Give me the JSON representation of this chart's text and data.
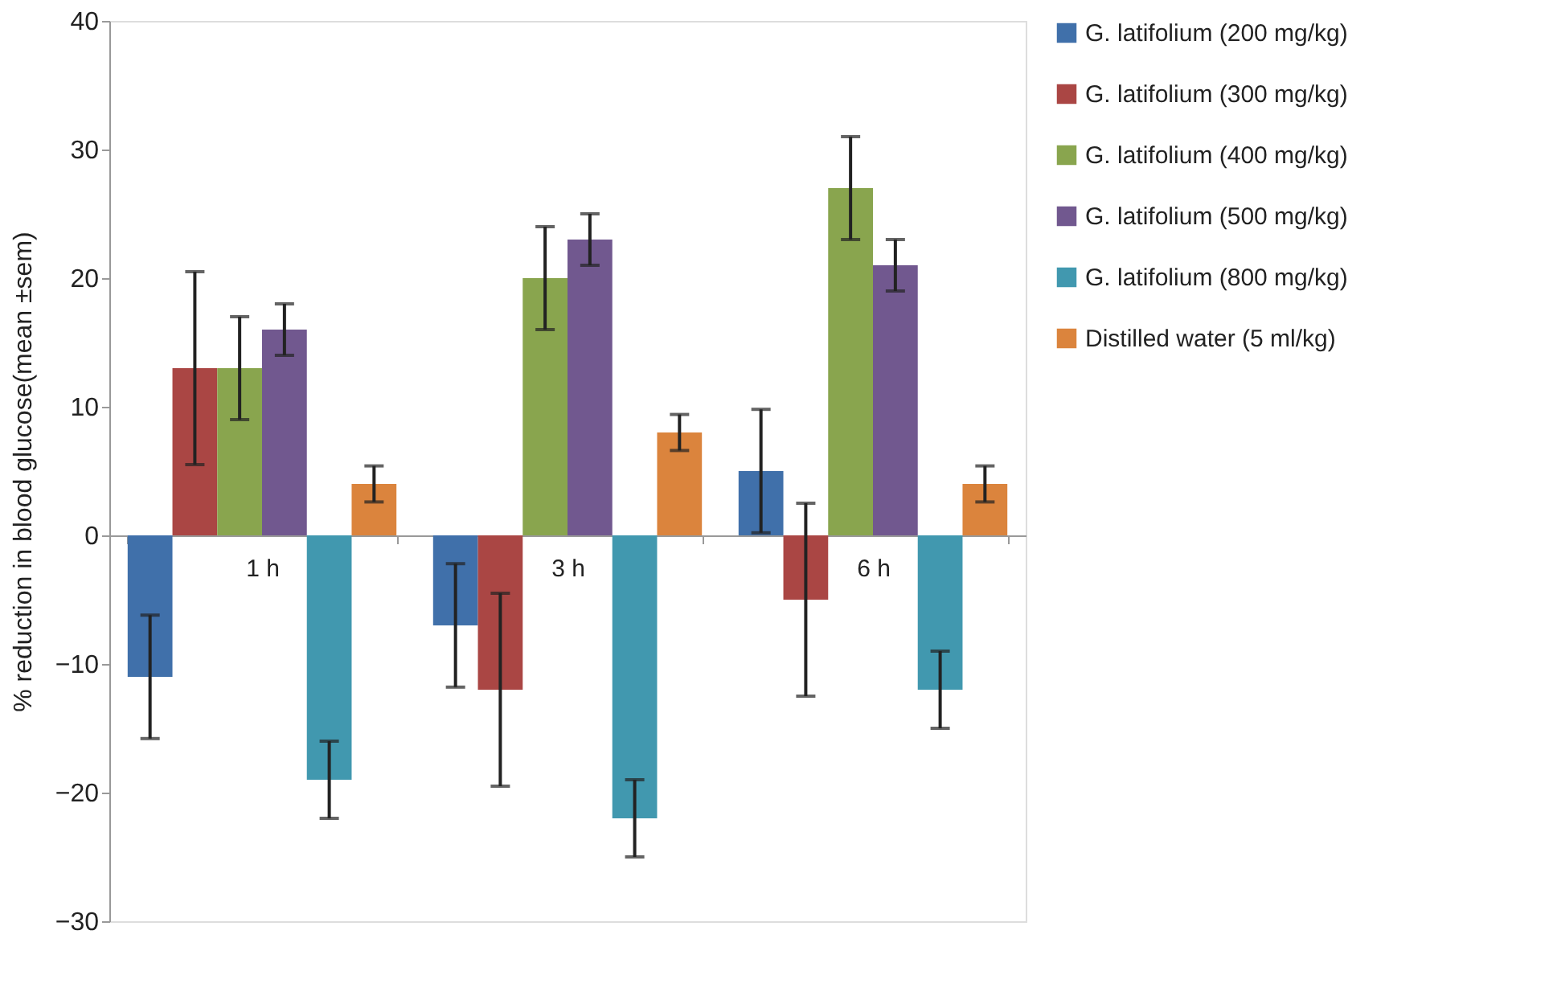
{
  "chart_data": {
    "type": "bar",
    "ylabel": "% reduction in blood glucose(mean ±sem)",
    "categories": [
      "1 h",
      "3 h",
      "6 h"
    ],
    "series": [
      {
        "name": "G. latifolium (200 mg/kg)",
        "color": "#4070aa",
        "values": [
          -11,
          -7,
          5
        ],
        "errors": [
          4.8,
          4.8,
          4.8
        ]
      },
      {
        "name": "G. latifolium (300 mg/kg)",
        "color": "#aa4644",
        "values": [
          13,
          -12,
          -5
        ],
        "errors": [
          7.5,
          7.5,
          7.5
        ]
      },
      {
        "name": "G. latifolium (400 mg/kg)",
        "color": "#89a54e",
        "values": [
          13,
          20,
          27
        ],
        "errors": [
          4,
          4,
          4
        ]
      },
      {
        "name": "G. latifolium (500 mg/kg)",
        "color": "#71588f",
        "values": [
          16,
          23,
          21
        ],
        "errors": [
          2,
          2,
          2
        ]
      },
      {
        "name": "G. latifolium (800 mg/kg)",
        "color": "#4198af",
        "values": [
          -19,
          -22,
          -12
        ],
        "errors": [
          3,
          3,
          3
        ]
      },
      {
        "name": "Distilled water (5 ml/kg)",
        "color": "#db843d",
        "values": [
          4,
          8,
          4
        ],
        "errors": [
          1.4,
          1.4,
          1.4
        ]
      }
    ],
    "ylim": [
      -30,
      40
    ],
    "yticks": [
      -30,
      -20,
      -10,
      0,
      10,
      20,
      30,
      40
    ],
    "grid": false,
    "legend": "right"
  }
}
